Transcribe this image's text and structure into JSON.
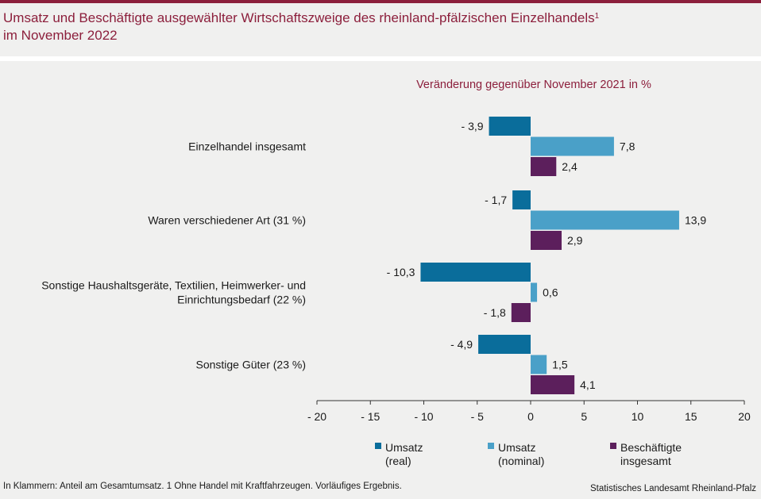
{
  "header": {
    "title_line1": "Umsatz und Beschäftigte ausgewählter Wirtschaftszweige des rheinland-pfälzischen Einzelhandels",
    "title_sup": "1",
    "title_line2": "im November 2022"
  },
  "footer": {
    "note": "In Klammern: Anteil am Gesamtumsatz. 1 Ohne Handel mit Kraftfahrzeugen. Vorläufiges Ergebnis.",
    "source": "Statistisches Landesamt Rheinland-Pfalz"
  },
  "colors": {
    "brand": "#8c1f3c",
    "umsatz_real": "#0a6d9b",
    "umsatz_nominal": "#4aa0c8",
    "beschaeftigte": "#5c1f5c"
  },
  "chart_data": {
    "type": "bar",
    "orientation": "horizontal",
    "subtitle": "Veränderung gegenüber November 2021 in %",
    "categories": [
      [
        "Einzelhandel insgesamt"
      ],
      [
        "Waren verschiedener Art (31 %)"
      ],
      [
        "Sonstige Haushaltsgeräte, Textilien, Heimwerker- und",
        "Einrichtungsbedarf (22 %)"
      ],
      [
        "Sonstige Güter (23 %)"
      ]
    ],
    "series": [
      {
        "name": "Umsatz (real)",
        "legend": [
          "Umsatz",
          "(real)"
        ],
        "color": "#0a6d9b",
        "values": [
          -3.9,
          -1.7,
          -10.3,
          -4.9
        ],
        "labels": [
          "- 3,9",
          "- 1,7",
          "- 10,3",
          "- 4,9"
        ]
      },
      {
        "name": "Umsatz (nominal)",
        "legend": [
          "Umsatz",
          "(nominal)"
        ],
        "color": "#4aa0c8",
        "values": [
          7.8,
          13.9,
          0.6,
          1.5
        ],
        "labels": [
          "7,8",
          "13,9",
          "0,6",
          "1,5"
        ]
      },
      {
        "name": "Beschäftigte insgesamt",
        "legend": [
          "Beschäftigte",
          "insgesamt"
        ],
        "color": "#5c1f5c",
        "values": [
          2.4,
          2.9,
          -1.8,
          4.1
        ],
        "labels": [
          "2,4",
          "2,9",
          "- 1,8",
          "4,1"
        ]
      }
    ],
    "xlim": [
      -20,
      20
    ],
    "xticks": [
      -20,
      -15,
      -10,
      -5,
      0,
      5,
      10,
      15,
      20
    ],
    "xtick_labels": [
      "- 20",
      "- 15",
      "- 10",
      "- 5",
      "0",
      "5",
      "10",
      "15",
      "20"
    ],
    "grid": false,
    "legend_position": "bottom"
  }
}
